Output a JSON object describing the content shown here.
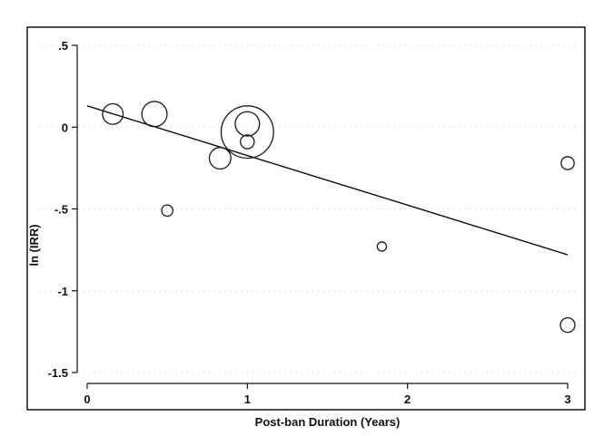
{
  "chart_data": {
    "type": "scatter",
    "title": "",
    "xlabel": "Post-ban Duration (Years)",
    "ylabel": "ln (IRR)",
    "xlim": [
      0,
      3
    ],
    "ylim": [
      -1.5,
      0.5
    ],
    "x_ticks": [
      0,
      1,
      2,
      3
    ],
    "x_tick_labels": [
      "0",
      "1",
      "2",
      "3"
    ],
    "y_ticks": [
      0.5,
      0,
      -0.5,
      -1,
      -1.5
    ],
    "y_tick_labels": [
      ".5",
      "0",
      "-.5",
      "-1",
      "-1.5"
    ],
    "grid": true,
    "legend": "none",
    "marker_style": "hollow circles, area proportional to study weight",
    "points": [
      {
        "x": 0.16,
        "y": 0.08,
        "size": 2.0
      },
      {
        "x": 0.42,
        "y": 0.08,
        "size": 3.0
      },
      {
        "x": 0.5,
        "y": -0.51,
        "size": 0.6
      },
      {
        "x": 0.83,
        "y": -0.19,
        "size": 2.2
      },
      {
        "x": 1.0,
        "y": 0.02,
        "size": 2.8
      },
      {
        "x": 1.0,
        "y": -0.03,
        "size": 13.0
      },
      {
        "x": 1.0,
        "y": -0.09,
        "size": 0.9
      },
      {
        "x": 1.84,
        "y": -0.73,
        "size": 0.4
      },
      {
        "x": 3.0,
        "y": -0.22,
        "size": 0.8
      },
      {
        "x": 3.0,
        "y": -1.21,
        "size": 1.0
      }
    ],
    "fit_line": {
      "x": [
        0,
        3
      ],
      "y": [
        0.13,
        -0.78
      ]
    }
  },
  "colors": {
    "marker": "#1a1a1a",
    "line": "#111111",
    "grid": "#c8c8c8",
    "axis": "#111111"
  }
}
